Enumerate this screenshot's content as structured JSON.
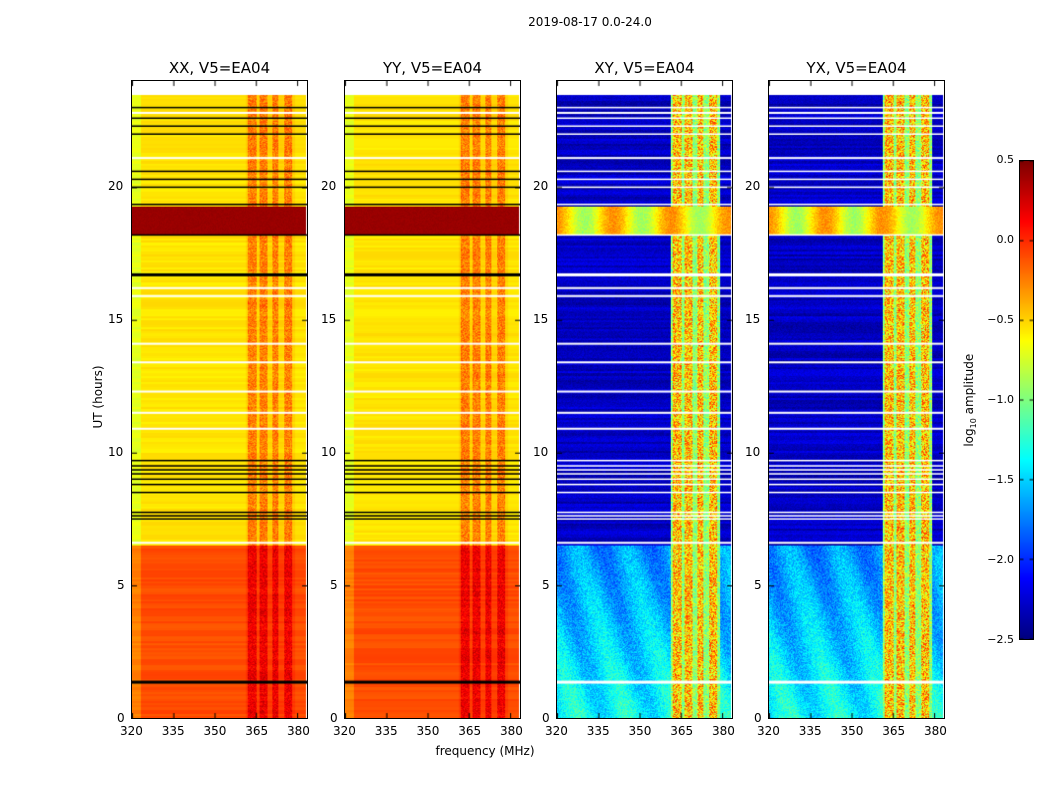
{
  "chart_data": {
    "type": "heatmap",
    "title": "2019-08-17 0.0-24.0",
    "xlabel": "frequency (MHz)",
    "ylabel": "UT (hours)",
    "xlim": [
      320,
      383.6
    ],
    "ylim": [
      0,
      24
    ],
    "xticks": [
      320,
      335,
      350,
      365,
      380
    ],
    "yticks": [
      0,
      5,
      10,
      15,
      20
    ],
    "panels": [
      {
        "title": "XX, V5=EA04",
        "kind": "parallel"
      },
      {
        "title": "YY, V5=EA04",
        "kind": "parallel"
      },
      {
        "title": "XY, V5=EA04",
        "kind": "cross"
      },
      {
        "title": "YX, V5=EA04",
        "kind": "cross"
      }
    ],
    "data_time_range": [
      0,
      23.5
    ],
    "data_freq_range": [
      320,
      383
    ],
    "rfi_bands_mhz": [
      [
        362,
        365
      ],
      [
        366,
        369
      ],
      [
        371,
        373
      ],
      [
        375,
        378
      ]
    ],
    "flagged_rows_hours": [
      1.35,
      7.5,
      7.62,
      7.75,
      8.5,
      8.8,
      9.0,
      9.2,
      9.35,
      9.5,
      9.7,
      16.7,
      18.2,
      19.35,
      20.0,
      20.3,
      20.6,
      22.0,
      22.3,
      22.6,
      23.0
    ],
    "gap_rows_hours": [
      6.6,
      10.9,
      11.5,
      12.3,
      13.4,
      14.1,
      15.9,
      16.2,
      21.1,
      22.8
    ],
    "strong_band_hours": [
      18.25,
      19.3
    ],
    "colorbar": {
      "label": "log10 amplitude",
      "label_main": "log",
      "label_sub": "10",
      "label_rest": " amplitude",
      "colormap": "jet",
      "range": [
        -2.5,
        0.5
      ],
      "ticks": [
        "0.5",
        "0.0",
        "−0.5",
        "−1.0",
        "−1.5",
        "−2.0",
        "−2.5"
      ],
      "tick_values": [
        0.5,
        0,
        -0.5,
        -1,
        -1.5,
        -2,
        -2.5
      ]
    }
  }
}
